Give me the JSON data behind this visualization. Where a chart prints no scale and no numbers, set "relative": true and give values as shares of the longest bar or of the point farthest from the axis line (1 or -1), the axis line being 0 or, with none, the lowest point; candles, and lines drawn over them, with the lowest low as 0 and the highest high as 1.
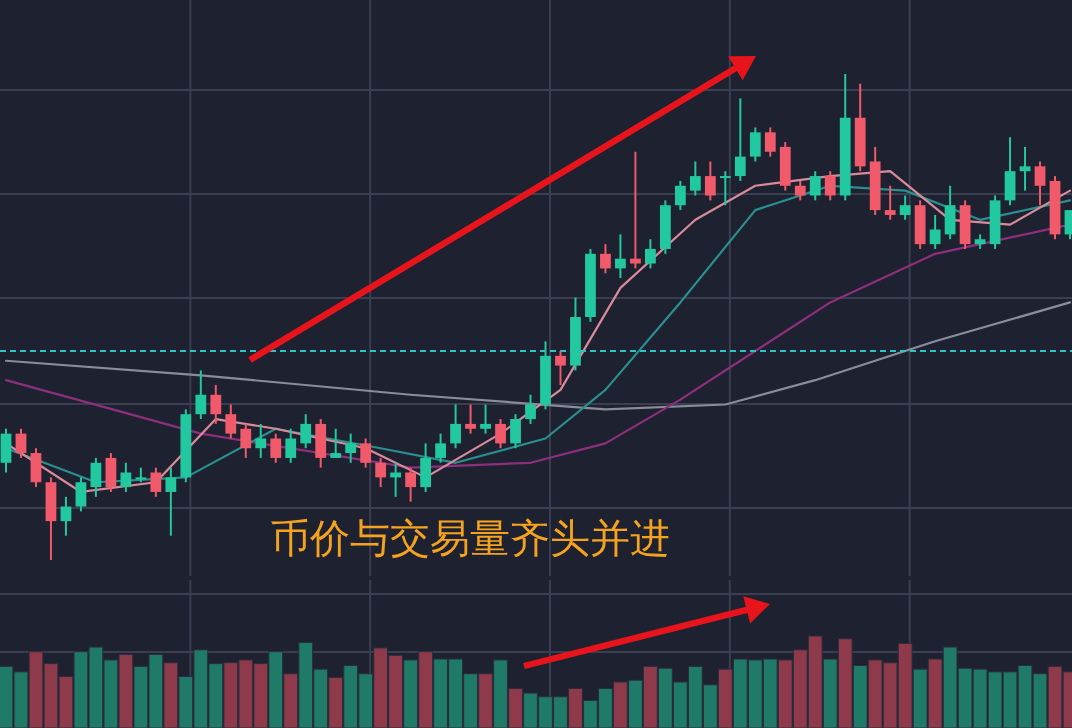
{
  "chart_data": [
    {
      "type": "candlestick",
      "relative": true,
      "grid": true,
      "categories": [
        null,
        null,
        null,
        null,
        null,
        null,
        null,
        null,
        null,
        null,
        null,
        null,
        null,
        null,
        null,
        null,
        null,
        null,
        null,
        null,
        null,
        null,
        null,
        null,
        null,
        null,
        null,
        null,
        null,
        null,
        null,
        null,
        null,
        null,
        null,
        null,
        null,
        null,
        null,
        null,
        null,
        null,
        null,
        null,
        null,
        null,
        null,
        null,
        null,
        null,
        null,
        null,
        null,
        null,
        null,
        null,
        null,
        null,
        null,
        null,
        null,
        null,
        null,
        null,
        null,
        null,
        null,
        null,
        null,
        null,
        null,
        null
      ],
      "ohlc": [
        [
          0.2,
          0.27,
          0.18,
          0.26
        ],
        [
          0.26,
          0.27,
          0.21,
          0.22
        ],
        [
          0.22,
          0.23,
          0.15,
          0.16
        ],
        [
          0.16,
          0.17,
          0,
          0.08
        ],
        [
          0.08,
          0.13,
          0.05,
          0.11
        ],
        [
          0.11,
          0.17,
          0.1,
          0.16
        ],
        [
          0.15,
          0.21,
          0.13,
          0.2
        ],
        [
          0.21,
          0.22,
          0.14,
          0.15
        ],
        [
          0.15,
          0.2,
          0.14,
          0.18
        ],
        [
          0.17,
          0.19,
          0.16,
          0.17
        ],
        [
          0.18,
          0.19,
          0.13,
          0.14
        ],
        [
          0.14,
          0.19,
          0.05,
          0.17
        ],
        [
          0.17,
          0.31,
          0.16,
          0.3
        ],
        [
          0.3,
          0.39,
          0.29,
          0.34
        ],
        [
          0.34,
          0.36,
          0.28,
          0.3
        ],
        [
          0.3,
          0.32,
          0.25,
          0.26
        ],
        [
          0.27,
          0.28,
          0.21,
          0.23
        ],
        [
          0.23,
          0.28,
          0.21,
          0.25
        ],
        [
          0.25,
          0.26,
          0.2,
          0.21
        ],
        [
          0.21,
          0.27,
          0.2,
          0.25
        ],
        [
          0.24,
          0.3,
          0.23,
          0.28
        ],
        [
          0.28,
          0.29,
          0.19,
          0.21
        ],
        [
          0.21,
          0.27,
          0.21,
          0.22
        ],
        [
          0.22,
          0.26,
          0.2,
          0.24
        ],
        [
          0.24,
          0.25,
          0.19,
          0.2
        ],
        [
          0.2,
          0.21,
          0.15,
          0.17
        ],
        [
          0.17,
          0.2,
          0.13,
          0.18
        ],
        [
          0.18,
          0.19,
          0.12,
          0.15
        ],
        [
          0.15,
          0.24,
          0.14,
          0.21
        ],
        [
          0.21,
          0.26,
          0.2,
          0.24
        ],
        [
          0.24,
          0.32,
          0.23,
          0.28
        ],
        [
          0.28,
          0.32,
          0.26,
          0.27
        ],
        [
          0.27,
          0.32,
          0.26,
          0.28
        ],
        [
          0.28,
          0.29,
          0.23,
          0.24
        ],
        [
          0.24,
          0.3,
          0.23,
          0.29
        ],
        [
          0.29,
          0.34,
          0.28,
          0.32
        ],
        [
          0.32,
          0.45,
          0.31,
          0.42
        ],
        [
          0.42,
          0.43,
          0.36,
          0.4
        ],
        [
          0.4,
          0.54,
          0.39,
          0.5
        ],
        [
          0.5,
          0.64,
          0.49,
          0.63
        ],
        [
          0.63,
          0.65,
          0.59,
          0.6
        ],
        [
          0.6,
          0.67,
          0.58,
          0.62
        ],
        [
          0.62,
          0.84,
          0.6,
          0.61
        ],
        [
          0.61,
          0.66,
          0.6,
          0.64
        ],
        [
          0.64,
          0.74,
          0.63,
          0.73
        ],
        [
          0.73,
          0.78,
          0.72,
          0.77
        ],
        [
          0.76,
          0.82,
          0.75,
          0.79
        ],
        [
          0.79,
          0.82,
          0.74,
          0.75
        ],
        [
          0.79,
          0.8,
          0.73,
          0.79
        ],
        [
          0.79,
          0.95,
          0.78,
          0.83
        ],
        [
          0.83,
          0.89,
          0.82,
          0.88
        ],
        [
          0.88,
          0.89,
          0.83,
          0.84
        ],
        [
          0.85,
          0.86,
          0.76,
          0.77
        ],
        [
          0.77,
          0.78,
          0.74,
          0.75
        ],
        [
          0.75,
          0.8,
          0.74,
          0.79
        ],
        [
          0.79,
          0.8,
          0.74,
          0.75
        ],
        [
          0.75,
          1,
          0.74,
          0.91
        ],
        [
          0.91,
          0.98,
          0.8,
          0.81
        ],
        [
          0.82,
          0.85,
          0.71,
          0.72
        ],
        [
          0.72,
          0.77,
          0.7,
          0.71
        ],
        [
          0.71,
          0.75,
          0.7,
          0.73
        ],
        [
          0.73,
          0.74,
          0.64,
          0.65
        ],
        [
          0.65,
          0.71,
          0.64,
          0.68
        ],
        [
          0.67,
          0.77,
          0.66,
          0.73
        ],
        [
          0.73,
          0.74,
          0.64,
          0.65
        ],
        [
          0.65,
          0.67,
          0.64,
          0.66
        ],
        [
          0.65,
          0.75,
          0.64,
          0.74
        ],
        [
          0.74,
          0.87,
          0.73,
          0.8
        ],
        [
          0.8,
          0.85,
          0.76,
          0.81
        ],
        [
          0.81,
          0.82,
          0.73,
          0.77
        ],
        [
          0.78,
          0.79,
          0.66,
          0.67
        ],
        [
          0.67,
          0.72,
          0.66,
          0.72
        ]
      ],
      "colors": [
        "#22c8a0",
        "#f05a6a",
        "#f05a6a",
        "#f05a6a",
        "#22c8a0",
        "#22c8a0",
        "#22c8a0",
        "#f05a6a",
        "#22c8a0",
        "#22c8a0",
        "#f05a6a",
        "#22c8a0",
        "#22c8a0",
        "#22c8a0",
        "#f05a6a",
        "#f05a6a",
        "#f05a6a",
        "#22c8a0",
        "#f05a6a",
        "#22c8a0",
        "#22c8a0",
        "#f05a6a",
        "#22c8a0",
        "#22c8a0",
        "#f05a6a",
        "#f05a6a",
        "#22c8a0",
        "#f05a6a",
        "#22c8a0",
        "#22c8a0",
        "#22c8a0",
        "#f05a6a",
        "#22c8a0",
        "#f05a6a",
        "#22c8a0",
        "#22c8a0",
        "#22c8a0",
        "#f05a6a",
        "#22c8a0",
        "#22c8a0",
        "#f05a6a",
        "#22c8a0",
        "#f05a6a",
        "#22c8a0",
        "#22c8a0",
        "#22c8a0",
        "#22c8a0",
        "#f05a6a",
        "#22c8a0",
        "#22c8a0",
        "#22c8a0",
        "#f05a6a",
        "#f05a6a",
        "#f05a6a",
        "#22c8a0",
        "#f05a6a",
        "#22c8a0",
        "#f05a6a",
        "#f05a6a",
        "#f05a6a",
        "#22c8a0",
        "#f05a6a",
        "#22c8a0",
        "#22c8a0",
        "#f05a6a",
        "#22c8a0",
        "#22c8a0",
        "#22c8a0",
        "#22c8a0",
        "#f05a6a",
        "#f05a6a",
        "#22c8a0"
      ],
      "series": [
        {
          "type": "line",
          "color": "#8a8d99",
          "values": [
            0.41,
            null,
            null,
            null,
            null,
            null,
            null,
            null,
            null,
            null,
            null,
            null,
            null,
            0.38,
            null,
            null,
            null,
            null,
            null,
            null,
            null,
            null,
            null,
            null,
            null,
            null,
            null,
            0.34,
            null,
            null,
            null,
            null,
            null,
            null,
            null,
            null,
            null,
            null,
            null,
            null,
            0.31,
            null,
            null,
            null,
            null,
            null,
            null,
            null,
            0.32,
            null,
            null,
            null,
            null,
            null,
            0.37,
            null,
            null,
            null,
            null,
            null,
            null,
            null,
            0.45,
            null,
            null,
            null,
            null,
            null,
            null,
            null,
            null,
            0.53
          ]
        },
        {
          "type": "line",
          "color": "#8e2f7e",
          "values": [
            0.37,
            null,
            null,
            null,
            null,
            null,
            null,
            null,
            null,
            null,
            null,
            null,
            null,
            0.26,
            null,
            null,
            null,
            null,
            null,
            null,
            null,
            null,
            null,
            null,
            null,
            null,
            null,
            0.19,
            null,
            null,
            null,
            null,
            null,
            null,
            null,
            0.2,
            null,
            null,
            null,
            null,
            0.24,
            null,
            null,
            null,
            null,
            0.33,
            null,
            null,
            null,
            null,
            0.43,
            null,
            null,
            null,
            null,
            0.53,
            null,
            null,
            null,
            null,
            null,
            null,
            0.63,
            null,
            null,
            null,
            null,
            null,
            null,
            null,
            null,
            0.69
          ]
        },
        {
          "type": "line",
          "color": "#2a8f8f",
          "values": [
            0.23,
            null,
            null,
            null,
            null,
            null,
            0.16,
            null,
            null,
            null,
            null,
            null,
            0.17,
            null,
            null,
            null,
            null,
            null,
            0.27,
            null,
            null,
            null,
            null,
            null,
            null,
            0.23,
            null,
            null,
            null,
            null,
            0.2,
            null,
            null,
            null,
            null,
            null,
            0.25,
            null,
            null,
            null,
            0.35,
            null,
            null,
            null,
            null,
            0.53,
            null,
            null,
            null,
            null,
            0.72,
            null,
            null,
            null,
            null,
            0.77,
            null,
            null,
            null,
            null,
            0.76,
            null,
            null,
            null,
            null,
            0.7,
            null,
            null,
            null,
            null,
            null,
            0.74
          ]
        },
        {
          "type": "line",
          "color": "#d88c9a",
          "values": [
            0.24,
            null,
            null,
            null,
            null,
            0.14,
            null,
            null,
            null,
            null,
            0.16,
            null,
            null,
            null,
            0.29,
            null,
            null,
            null,
            0.27,
            null,
            null,
            null,
            null,
            null,
            0.23,
            null,
            null,
            null,
            0.17,
            null,
            null,
            null,
            null,
            0.26,
            null,
            null,
            null,
            0.35,
            null,
            null,
            null,
            0.56,
            null,
            null,
            null,
            null,
            0.7,
            null,
            null,
            null,
            0.77,
            null,
            null,
            null,
            null,
            0.79,
            null,
            null,
            null,
            0.8,
            null,
            null,
            null,
            0.7,
            null,
            null,
            null,
            0.69,
            null,
            null,
            null,
            0.76
          ]
        }
      ],
      "ref_lines": [
        {
          "axis": "y",
          "value": 0.43,
          "color": "#2fc4c4",
          "line_style": "dashed"
        }
      ],
      "annotations": [
        "币价与交易量齐头并进"
      ]
    },
    {
      "type": "bar",
      "relative": true,
      "grid": true,
      "categories": [
        null,
        null,
        null,
        null,
        null,
        null,
        null,
        null,
        null,
        null,
        null,
        null,
        null,
        null,
        null,
        null,
        null,
        null,
        null,
        null,
        null,
        null,
        null,
        null,
        null,
        null,
        null,
        null,
        null,
        null,
        null,
        null,
        null,
        null,
        null,
        null,
        null,
        null,
        null,
        null,
        null,
        null,
        null,
        null,
        null,
        null,
        null,
        null,
        null,
        null,
        null,
        null,
        null,
        null,
        null,
        null,
        null,
        null,
        null,
        null,
        null,
        null,
        null,
        null,
        null,
        null,
        null,
        null,
        null,
        null,
        null,
        null
      ],
      "values": [
        0.67,
        0.61,
        0.83,
        0.7,
        0.56,
        0.83,
        0.88,
        0.74,
        0.8,
        0.67,
        0.8,
        0.71,
        0.56,
        0.85,
        0.7,
        0.71,
        0.74,
        0.7,
        0.83,
        0.59,
        0.93,
        0.64,
        0.55,
        0.68,
        0.59,
        0.87,
        0.79,
        0.74,
        0.83,
        0.75,
        0.75,
        0.59,
        0.59,
        0.74,
        0.43,
        0.38,
        0.34,
        0.34,
        0.43,
        0.3,
        0.43,
        0.5,
        0.52,
        0.67,
        0.65,
        0.5,
        0.67,
        0.47,
        0.64,
        0.75,
        0.74,
        0.75,
        0.74,
        0.85,
        1,
        0.75,
        0.97,
        0.68,
        0.74,
        0.71,
        0.92,
        0.64,
        0.75,
        0.88,
        0.65,
        0.64,
        0.61,
        0.61,
        0.68,
        0.59,
        0.67,
        0.61
      ],
      "colors": [
        "#1f7a68",
        "#1f7a68",
        "#8e3a4b",
        "#8e3a4b",
        "#8e3a4b",
        "#1f7a68",
        "#1f7a68",
        "#1f7a68",
        "#8e3a4b",
        "#1f7a68",
        "#1f7a68",
        "#8e3a4b",
        "#1f7a68",
        "#1f7a68",
        "#1f7a68",
        "#8e3a4b",
        "#8e3a4b",
        "#8e3a4b",
        "#1f7a68",
        "#8e3a4b",
        "#1f7a68",
        "#1f7a68",
        "#8e3a4b",
        "#1f7a68",
        "#1f7a68",
        "#8e3a4b",
        "#8e3a4b",
        "#1f7a68",
        "#8e3a4b",
        "#1f7a68",
        "#1f7a68",
        "#1f7a68",
        "#8e3a4b",
        "#1f7a68",
        "#8e3a4b",
        "#1f7a68",
        "#1f7a68",
        "#1f7a68",
        "#8e3a4b",
        "#1f7a68",
        "#1f7a68",
        "#8e3a4b",
        "#1f7a68",
        "#8e3a4b",
        "#1f7a68",
        "#1f7a68",
        "#1f7a68",
        "#1f7a68",
        "#8e3a4b",
        "#1f7a68",
        "#1f7a68",
        "#1f7a68",
        "#8e3a4b",
        "#8e3a4b",
        "#8e3a4b",
        "#1f7a68",
        "#8e3a4b",
        "#1f7a68",
        "#8e3a4b",
        "#8e3a4b",
        "#8e3a4b",
        "#1f7a68",
        "#8e3a4b",
        "#1f7a68",
        "#1f7a68",
        "#1f7a68",
        "#1f7a68",
        "#1f7a68",
        "#1f7a68",
        "#1f7a68",
        "#8e3a4b",
        "#8e3a4b"
      ]
    }
  ]
}
